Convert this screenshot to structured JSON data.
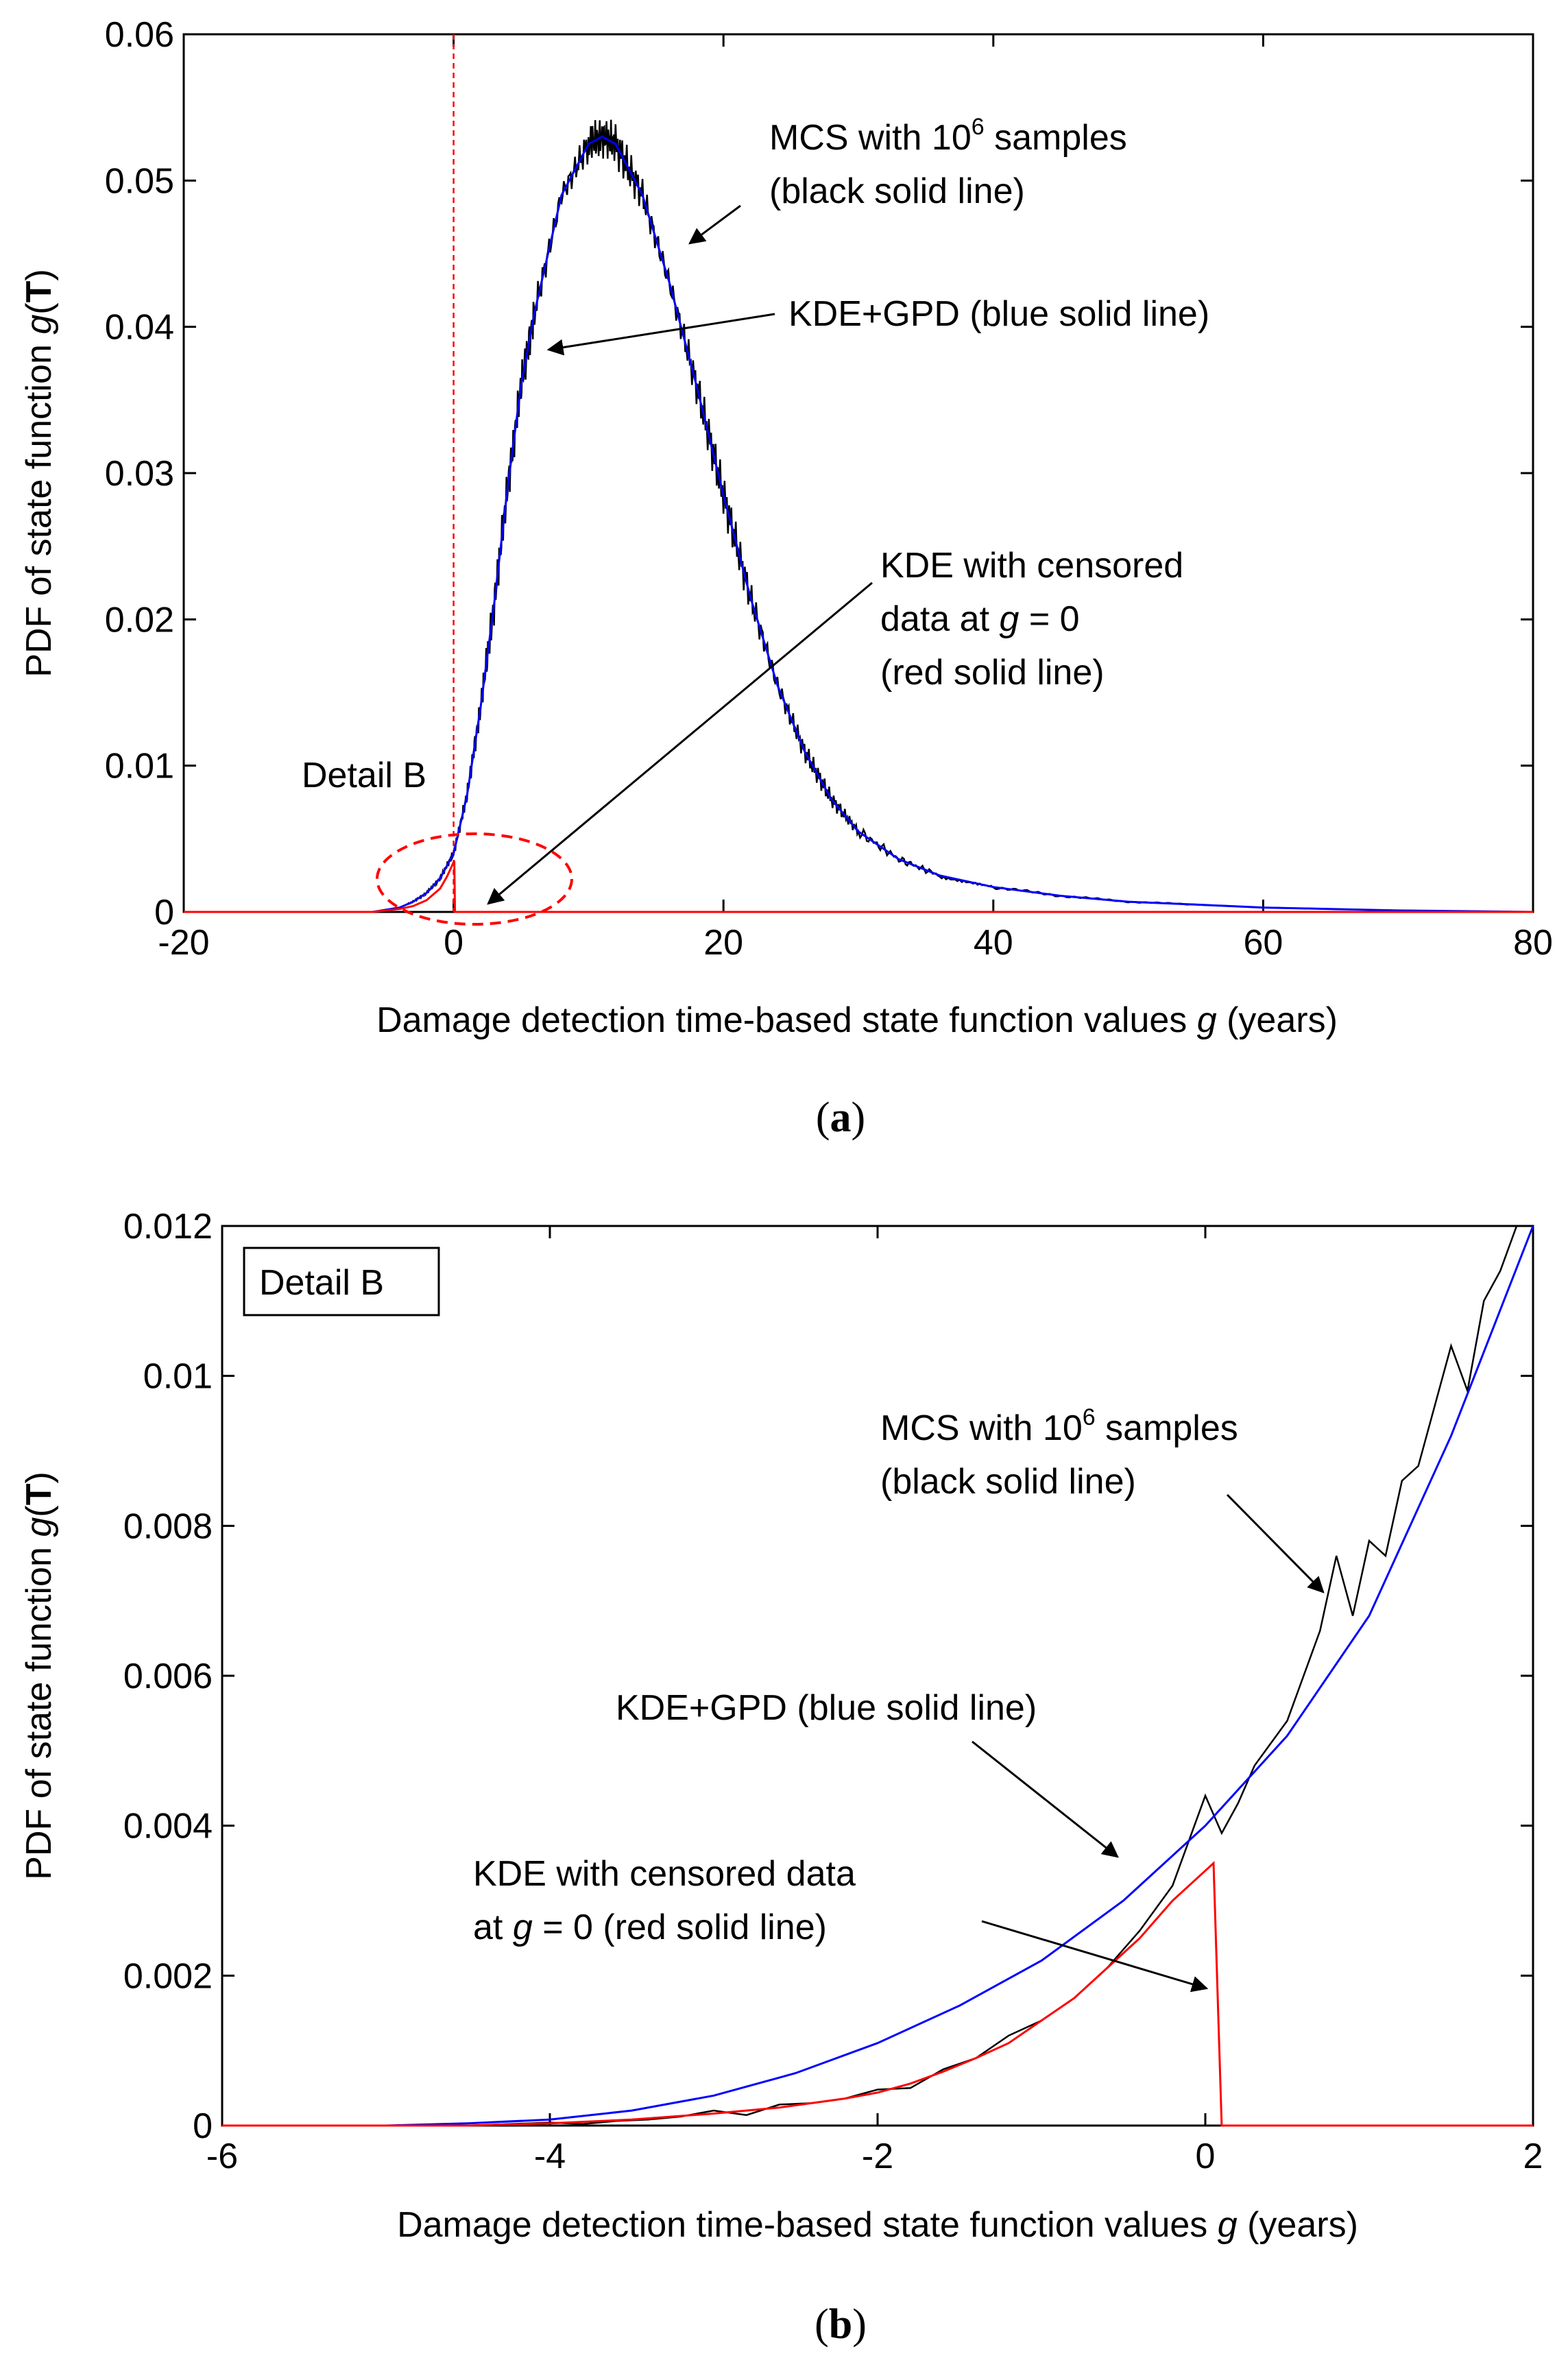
{
  "colors": {
    "mcs": "#000000",
    "kde_gpd": "#0000ff",
    "kde_censored": "#ff0000",
    "detail": "#ff0000"
  },
  "chart_data": [
    {
      "panel": "a",
      "panel_label": "a",
      "type": "line",
      "xlabel_prefix": "Damage detection time-based state function values ",
      "xlabel_var": "g",
      "xlabel_suffix": " (years)",
      "ylabel_prefix": "PDF of state function ",
      "ylabel_var": "g",
      "ylabel_open": "(",
      "ylabel_bold": "T",
      "ylabel_close": ")",
      "xlim": [
        -20,
        80
      ],
      "ylim": [
        0,
        0.06
      ],
      "xticks": [
        -20,
        0,
        20,
        40,
        60,
        80
      ],
      "xtick_labels": [
        "-20",
        "0",
        "20",
        "40",
        "60",
        "80"
      ],
      "yticks": [
        0,
        0.01,
        0.02,
        0.03,
        0.04,
        0.05,
        0.06
      ],
      "ytick_labels": [
        "0",
        "0.01",
        "0.02",
        "0.03",
        "0.04",
        "0.05",
        "0.06"
      ],
      "series": [
        {
          "name": "KDE+GPD (blue solid line)",
          "color": "blue",
          "x": [
            -20,
            -6,
            -4,
            -3,
            -2,
            -1,
            0,
            1,
            2,
            3,
            4,
            5,
            6,
            8,
            10,
            11,
            12,
            14,
            16,
            18,
            20,
            22,
            24,
            26,
            28,
            30,
            33,
            36,
            40,
            45,
            50,
            55,
            60,
            65,
            70,
            75,
            80
          ],
          "y": [
            0,
            0,
            0.0003,
            0.0007,
            0.0013,
            0.0023,
            0.004,
            0.008,
            0.014,
            0.021,
            0.029,
            0.036,
            0.041,
            0.049,
            0.0525,
            0.053,
            0.0525,
            0.049,
            0.043,
            0.036,
            0.0285,
            0.0215,
            0.0155,
            0.011,
            0.0077,
            0.0055,
            0.0036,
            0.0025,
            0.0017,
            0.0011,
            0.0007,
            0.0005,
            0.0003,
            0.0002,
            0.0001,
            5e-05,
            0
          ]
        },
        {
          "name": "MCS with 10^6 samples (black solid line)",
          "color": "black",
          "x": [
            -20,
            -6,
            -4,
            -3,
            -2,
            -1,
            0,
            1,
            2,
            3,
            4,
            5,
            6,
            8,
            10,
            11,
            12,
            14,
            16,
            18,
            20,
            22,
            24,
            26,
            28,
            30,
            33,
            36,
            40,
            45,
            50,
            55,
            60,
            65,
            70,
            75,
            80
          ],
          "y": [
            0,
            0,
            0.0003,
            0.0007,
            0.0013,
            0.0023,
            0.004,
            0.008,
            0.014,
            0.021,
            0.029,
            0.036,
            0.041,
            0.049,
            0.0525,
            0.053,
            0.0525,
            0.049,
            0.043,
            0.036,
            0.0285,
            0.0215,
            0.0155,
            0.011,
            0.0077,
            0.0055,
            0.0036,
            0.0025,
            0.0017,
            0.0011,
            0.0007,
            0.0005,
            0.0003,
            0.0002,
            0.0001,
            5e-05,
            0
          ]
        },
        {
          "name": "KDE with censored data at g = 0 (red solid line)",
          "color": "red",
          "x": [
            -20,
            -6,
            -4,
            -3,
            -2,
            -1,
            -0.5,
            0,
            0.05,
            0.1,
            80
          ],
          "y": [
            0,
            0,
            0.0002,
            0.0004,
            0.0008,
            0.0016,
            0.0024,
            0.0034,
            0.0035,
            0,
            0
          ]
        }
      ],
      "vline_x": 0,
      "annotations": [
        {
          "lines": [
            "MCS with 10",
            "(black solid line)"
          ],
          "sup": "6",
          "sup_suffix": " samples"
        },
        {
          "lines": [
            "KDE+GPD (blue solid line)"
          ]
        },
        {
          "lines": [
            "KDE with censored",
            "data at ",
            "(red solid line)"
          ],
          "var": "g",
          "var_suffix": " = 0"
        },
        {
          "lines": [
            "Detail B"
          ]
        }
      ]
    },
    {
      "panel": "b",
      "panel_label": "b",
      "type": "line",
      "xlabel_prefix": "Damage detection time-based state function values ",
      "xlabel_var": "g",
      "xlabel_suffix": " (years)",
      "ylabel_prefix": "PDF of state function ",
      "ylabel_var": "g",
      "ylabel_open": "(",
      "ylabel_bold": "T",
      "ylabel_close": ")",
      "xlim": [
        -6,
        2
      ],
      "ylim": [
        0,
        0.012
      ],
      "xticks": [
        -6,
        -4,
        -2,
        0,
        2
      ],
      "xtick_labels": [
        "-6",
        "-4",
        "-2",
        "0",
        "2"
      ],
      "yticks": [
        0,
        0.002,
        0.004,
        0.006,
        0.008,
        0.01,
        0.012
      ],
      "ytick_labels": [
        "0",
        "0.002",
        "0.004",
        "0.006",
        "0.008",
        "0.01",
        "0.012"
      ],
      "legend_box": "Detail B",
      "series": [
        {
          "name": "KDE+GPD (blue solid line)",
          "color": "blue",
          "x": [
            -6,
            -5,
            -4.5,
            -4,
            -3.5,
            -3,
            -2.5,
            -2,
            -1.5,
            -1,
            -0.5,
            0,
            0.5,
            1,
            1.5,
            2
          ],
          "y": [
            0,
            0,
            3e-05,
            8e-05,
            0.0002,
            0.0004,
            0.0007,
            0.0011,
            0.0016,
            0.0022,
            0.003,
            0.004,
            0.0052,
            0.0068,
            0.0092,
            0.012
          ]
        },
        {
          "name": "MCS with 10^6 samples (black solid line)",
          "color": "black",
          "x": [
            -6,
            -4.5,
            -4,
            -3.8,
            -3.6,
            -3.4,
            -3.2,
            -3,
            -2.8,
            -2.6,
            -2.4,
            -2.2,
            -2,
            -1.8,
            -1.6,
            -1.4,
            -1.2,
            -1,
            -0.8,
            -0.6,
            -0.4,
            -0.2,
            0,
            0.1,
            0.2,
            0.3,
            0.4,
            0.5,
            0.6,
            0.7,
            0.8,
            0.9,
            1.0,
            1.1,
            1.2,
            1.3,
            1.4,
            1.5,
            1.6,
            1.7,
            1.8,
            1.9,
            2.0
          ],
          "y": [
            0,
            0,
            4e-05,
            2e-05,
            6e-05,
            8e-05,
            0.00012,
            0.0002,
            0.00014,
            0.00028,
            0.0003,
            0.00036,
            0.00048,
            0.0005,
            0.00075,
            0.0009,
            0.0012,
            0.0014,
            0.0017,
            0.0021,
            0.0026,
            0.0032,
            0.0044,
            0.0039,
            0.0043,
            0.0048,
            0.0051,
            0.0054,
            0.006,
            0.0066,
            0.0076,
            0.0068,
            0.0078,
            0.0076,
            0.0086,
            0.0088,
            0.0096,
            0.0104,
            0.0098,
            0.011,
            0.0114,
            0.012,
            0.012
          ]
        },
        {
          "name": "KDE with censored data at g = 0 (red solid line)",
          "color": "red",
          "x": [
            -6,
            -4.5,
            -4,
            -3.5,
            -3,
            -2.6,
            -2.2,
            -2,
            -1.8,
            -1.6,
            -1.4,
            -1.2,
            -1,
            -0.8,
            -0.6,
            -0.4,
            -0.2,
            0,
            0.05,
            0.1,
            2
          ],
          "y": [
            0,
            0,
            3e-05,
            8e-05,
            0.00016,
            0.00024,
            0.00036,
            0.00044,
            0.00056,
            0.00072,
            0.0009,
            0.0011,
            0.0014,
            0.0017,
            0.0021,
            0.0025,
            0.003,
            0.0034,
            0.0035,
            0,
            0
          ]
        }
      ],
      "annotations": [
        {
          "lines": [
            "MCS with 10",
            "(black solid line)"
          ],
          "sup": "6",
          "sup_suffix": " samples"
        },
        {
          "lines": [
            "KDE+GPD (blue solid line)"
          ]
        },
        {
          "lines": [
            "KDE with censored data",
            "at ",
            " = 0 (red solid line)"
          ],
          "var": "g"
        }
      ]
    }
  ]
}
